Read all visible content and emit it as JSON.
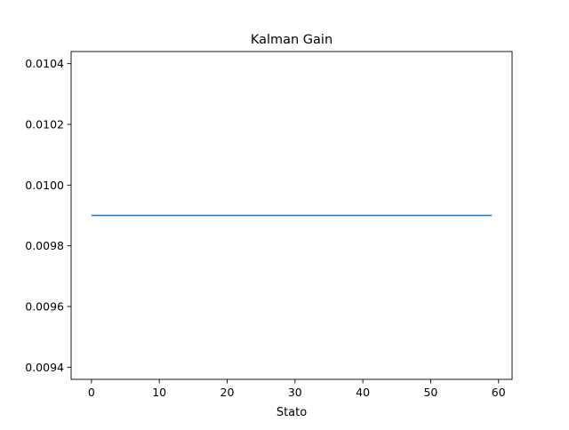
{
  "chart_data": {
    "type": "line",
    "title": "Kalman Gain",
    "xlabel": "Stato",
    "ylabel": "",
    "xlim": [
      -3,
      62
    ],
    "ylim": [
      0.00936,
      0.01044
    ],
    "xticks": [
      0,
      10,
      20,
      30,
      40,
      50,
      60
    ],
    "xtick_labels": [
      "0",
      "10",
      "20",
      "30",
      "40",
      "50",
      "60"
    ],
    "yticks": [
      0.0094,
      0.0096,
      0.0098,
      0.01,
      0.0102,
      0.0104
    ],
    "ytick_labels": [
      "0.0094",
      "0.0096",
      "0.0098",
      "0.0100",
      "0.0102",
      "0.0104"
    ],
    "grid": false,
    "series": [
      {
        "color": "#1f77b4",
        "x": [
          0,
          59
        ],
        "y": [
          0.0099,
          0.0099
        ]
      }
    ]
  }
}
